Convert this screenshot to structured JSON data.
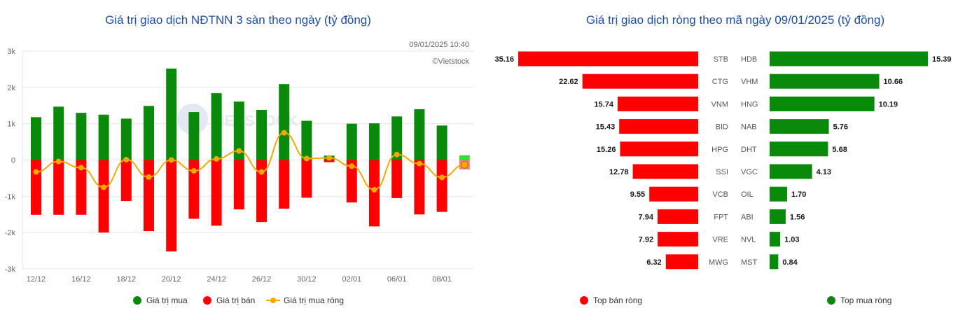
{
  "colors": {
    "buy": "#0a8a0a",
    "sell": "#ff0000",
    "net": "#f5a800",
    "title": "#1f4e99",
    "grid": "#e6e6e6"
  },
  "chart_data": [
    {
      "type": "bar",
      "title": "Giá trị giao dịch NĐTNN 3 sàn theo ngày (tỷ đồng)",
      "timestamp": "09/01/2025 10:40",
      "credit": "©Vietstock",
      "watermark": "VIETSTOCK",
      "ylim": [
        -3000,
        3000
      ],
      "yticks": [
        3000,
        2000,
        1000,
        0,
        -1000,
        -2000,
        -3000
      ],
      "ytick_labels": [
        "3k",
        "2k",
        "1k",
        "0",
        "-1k",
        "-2k",
        "-3k"
      ],
      "xtick_labels": [
        "12/12",
        "16/12",
        "18/12",
        "20/12",
        "24/12",
        "26/12",
        "30/12",
        "02/01",
        "06/01",
        "08/01"
      ],
      "xtick_positions": [
        0,
        2,
        4,
        6,
        8,
        10,
        12,
        14,
        16,
        18
      ],
      "series": [
        {
          "name": "Giá trị mua",
          "values": [
            1180,
            1470,
            1300,
            1250,
            1140,
            1490,
            2520,
            1320,
            1840,
            1610,
            1380,
            2090,
            1080,
            120,
            1000,
            1010,
            1200,
            1400,
            950,
            130
          ]
        },
        {
          "name": "Giá trị bán",
          "values": [
            -1510,
            -1510,
            -1510,
            -2000,
            -1130,
            -1960,
            -2520,
            -1620,
            -1810,
            -1360,
            -1710,
            -1340,
            -1040,
            -60,
            -1170,
            -1830,
            -1050,
            -1500,
            -1430,
            -260
          ]
        },
        {
          "name": "Giá trị mua ròng",
          "values": [
            -330,
            -40,
            -210,
            -750,
            10,
            -470,
            0,
            -300,
            30,
            250,
            -330,
            750,
            40,
            60,
            -170,
            -820,
            150,
            -100,
            -480,
            -130
          ]
        }
      ],
      "legend": [
        "Giá trị mua",
        "Giá trị bán",
        "Giá trị mua ròng"
      ],
      "legend_position": "bottom",
      "grid": true
    },
    {
      "type": "bar",
      "title": "Giá trị giao dịch ròng theo mã ngày 09/01/2025 (tỷ đồng)",
      "sell": {
        "name": "Top bán ròng",
        "codes": [
          "STB",
          "CTG",
          "VNM",
          "BID",
          "HPG",
          "SSI",
          "VCB",
          "FPT",
          "VRE",
          "MWG"
        ],
        "values": [
          35.16,
          22.62,
          15.74,
          15.43,
          15.26,
          12.78,
          9.55,
          7.94,
          7.92,
          6.32
        ],
        "labels": [
          "35.16",
          "22.62",
          "15.74",
          "15.43",
          "15.26",
          "12.78",
          "9.55",
          "7.94",
          "7.92",
          "6.32"
        ]
      },
      "buy": {
        "name": "Top mua ròng",
        "codes": [
          "HDB",
          "VHM",
          "HNG",
          "NAB",
          "DHT",
          "VGC",
          "OIL",
          "ABI",
          "NVL",
          "MST"
        ],
        "values": [
          15.39,
          10.66,
          10.19,
          5.76,
          5.68,
          4.13,
          1.7,
          1.56,
          1.03,
          0.84
        ],
        "labels": [
          "15.39",
          "10.66",
          "10.19",
          "5.76",
          "5.68",
          "4.13",
          "1.70",
          "1.56",
          "1.03",
          "0.84"
        ]
      },
      "legend": [
        "Top bán ròng",
        "Top mua ròng"
      ],
      "legend_position": "bottom"
    }
  ]
}
